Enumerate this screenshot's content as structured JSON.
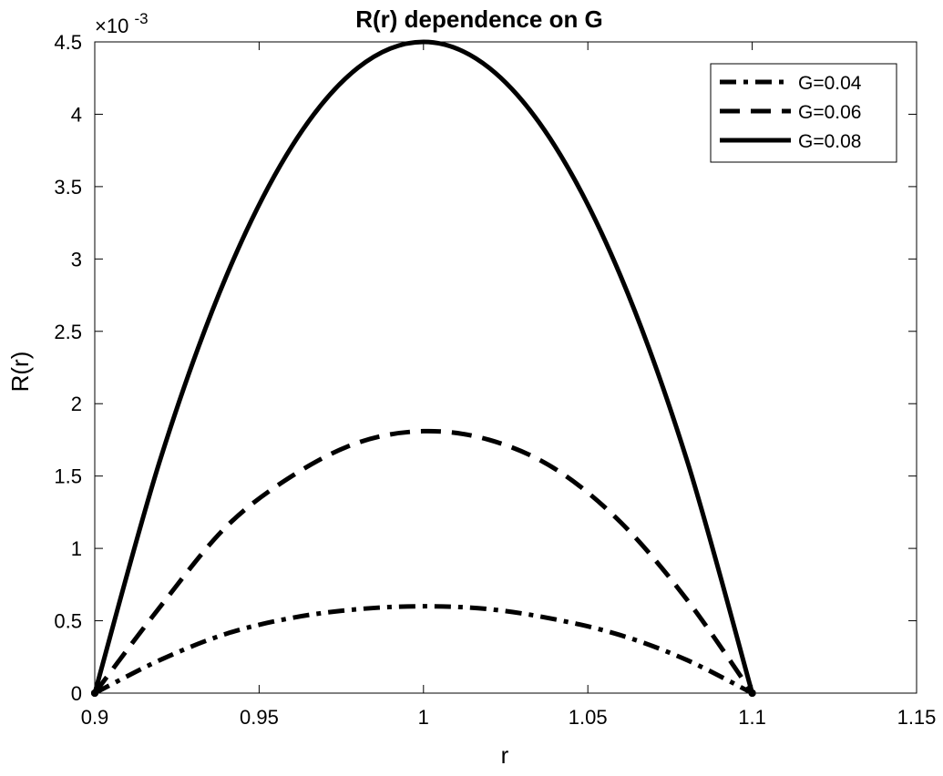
{
  "chart_data": {
    "type": "line",
    "title": "R(r) dependence on G",
    "xlabel": "r",
    "ylabel": "R(r)",
    "xlim": [
      0.9,
      1.15
    ],
    "ylim": [
      0,
      0.0045
    ],
    "y_multiplier_label": "×10",
    "y_multiplier_exponent": "-3",
    "xticks": [
      0.9,
      0.95,
      1.0,
      1.05,
      1.1,
      1.15
    ],
    "xtick_labels": [
      "0.9",
      "0.95",
      "1",
      "1.05",
      "1.1",
      "1.15"
    ],
    "yticks": [
      0,
      0.0005,
      0.001,
      0.0015,
      0.002,
      0.0025,
      0.003,
      0.0035,
      0.004,
      0.0045
    ],
    "ytick_labels": [
      "0",
      "0.5",
      "1",
      "1.5",
      "2",
      "2.5",
      "3",
      "3.5",
      "4",
      "4.5"
    ],
    "grid": false,
    "legend_position": "top-right",
    "series": [
      {
        "name": "G=0.04",
        "line_style": "dashdot",
        "color": "#000000",
        "x": [
          0.9,
          0.92,
          0.94,
          0.96,
          0.98,
          1.0,
          1.02,
          1.04,
          1.06,
          1.08,
          1.1
        ],
        "y": [
          0.0,
          0.00023,
          0.00041,
          0.00052,
          0.00058,
          0.0006,
          0.00058,
          0.00051,
          0.0004,
          0.00023,
          0.0
        ]
      },
      {
        "name": "G=0.06",
        "line_style": "dashed",
        "color": "#000000",
        "x": [
          0.9,
          0.92,
          0.94,
          0.96,
          0.98,
          1.0,
          1.02,
          1.04,
          1.06,
          1.08,
          1.1
        ],
        "y": [
          0.0,
          0.0006,
          0.00115,
          0.0015,
          0.00173,
          0.00181,
          0.00175,
          0.00155,
          0.00118,
          0.00065,
          0.0
        ]
      },
      {
        "name": "G=0.08",
        "line_style": "solid",
        "color": "#000000",
        "x": [
          0.9,
          0.92,
          0.94,
          0.96,
          0.98,
          1.0,
          1.02,
          1.04,
          1.06,
          1.08,
          1.1
        ],
        "y": [
          0.0,
          0.00162,
          0.00288,
          0.00378,
          0.00432,
          0.0045,
          0.00432,
          0.00378,
          0.00288,
          0.00162,
          0.0
        ]
      }
    ]
  }
}
